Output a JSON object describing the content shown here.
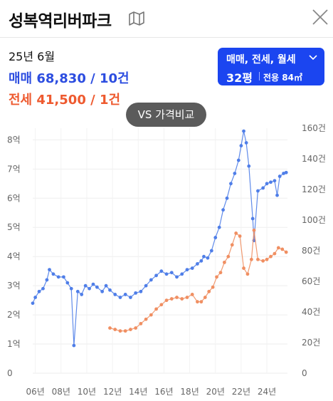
{
  "header": {
    "title": "성복역리버파크",
    "map_icon": "map-icon",
    "close_icon": "close-icon"
  },
  "summary": {
    "month": "25년 6월",
    "sale": "매매 68,830 / 10건",
    "jeonse": "전세 41,500 / 1건"
  },
  "selector": {
    "types": "매매, 전세, 월세",
    "size": "32평",
    "area": "전용 84㎡"
  },
  "compare_button": "VS 가격비교",
  "colors": {
    "sale": "#2c4de0",
    "sale_line": "#4f7ee8",
    "jeonse": "#ee5a2f",
    "jeonse_line": "#f08f62",
    "accent": "#1b45f0"
  },
  "chart_data": {
    "type": "line",
    "x_tick_labels": [
      "06년",
      "08년",
      "10년",
      "12년",
      "14년",
      "16년",
      "18년",
      "20년",
      "22년",
      "24년"
    ],
    "y_left_labels": [
      "0",
      "1억",
      "2억",
      "3억",
      "4억",
      "5억",
      "6억",
      "7억",
      "8억"
    ],
    "y_right_labels": [
      "0",
      "20건",
      "40건",
      "60건",
      "80건",
      "100건",
      "120건",
      "140건",
      "160건"
    ],
    "ylim_left": [
      0,
      8.4
    ],
    "ylim_right": [
      0,
      160
    ],
    "series": [
      {
        "name": "매매",
        "color": "#4f7ee8",
        "points": [
          [
            2005.8,
            2.4
          ],
          [
            2006.0,
            2.6
          ],
          [
            2006.3,
            2.8
          ],
          [
            2006.6,
            2.9
          ],
          [
            2006.9,
            3.2
          ],
          [
            2007.1,
            3.55
          ],
          [
            2007.4,
            3.4
          ],
          [
            2007.8,
            3.3
          ],
          [
            2008.2,
            3.3
          ],
          [
            2008.5,
            3.1
          ],
          [
            2008.8,
            2.9
          ],
          [
            2009.0,
            0.95
          ],
          [
            2009.3,
            2.8
          ],
          [
            2009.6,
            2.7
          ],
          [
            2009.9,
            3.0
          ],
          [
            2010.2,
            2.9
          ],
          [
            2010.5,
            3.05
          ],
          [
            2010.8,
            2.95
          ],
          [
            2011.2,
            2.8
          ],
          [
            2011.5,
            3.0
          ],
          [
            2011.8,
            2.85
          ],
          [
            2012.2,
            2.7
          ],
          [
            2012.6,
            2.6
          ],
          [
            2013.0,
            2.7
          ],
          [
            2013.4,
            2.6
          ],
          [
            2013.8,
            2.75
          ],
          [
            2014.2,
            2.8
          ],
          [
            2014.6,
            3.0
          ],
          [
            2015.0,
            3.2
          ],
          [
            2015.4,
            3.35
          ],
          [
            2015.8,
            3.5
          ],
          [
            2016.2,
            3.4
          ],
          [
            2016.6,
            3.45
          ],
          [
            2017.0,
            3.3
          ],
          [
            2017.4,
            3.4
          ],
          [
            2017.8,
            3.55
          ],
          [
            2018.2,
            3.6
          ],
          [
            2018.6,
            3.75
          ],
          [
            2018.9,
            3.85
          ],
          [
            2019.1,
            4.0
          ],
          [
            2019.4,
            3.95
          ],
          [
            2019.7,
            4.2
          ],
          [
            2020.0,
            4.65
          ],
          [
            2020.3,
            5.0
          ],
          [
            2020.6,
            5.6
          ],
          [
            2020.9,
            6.0
          ],
          [
            2021.2,
            6.5
          ],
          [
            2021.5,
            6.85
          ],
          [
            2021.8,
            7.3
          ],
          [
            2022.0,
            7.8
          ],
          [
            2022.2,
            8.3
          ],
          [
            2022.4,
            7.9
          ],
          [
            2022.6,
            7.1
          ],
          [
            2022.9,
            5.3
          ],
          [
            2023.0,
            4.55
          ],
          [
            2023.3,
            6.25
          ],
          [
            2023.7,
            6.35
          ],
          [
            2024.0,
            6.5
          ],
          [
            2024.3,
            6.55
          ],
          [
            2024.6,
            6.6
          ],
          [
            2024.8,
            6.1
          ],
          [
            2025.0,
            6.75
          ],
          [
            2025.3,
            6.85
          ],
          [
            2025.5,
            6.88
          ]
        ]
      },
      {
        "name": "전세",
        "color": "#f08f62",
        "points": [
          [
            2011.8,
            1.55
          ],
          [
            2012.2,
            1.5
          ],
          [
            2012.6,
            1.45
          ],
          [
            2013.0,
            1.45
          ],
          [
            2013.4,
            1.5
          ],
          [
            2013.8,
            1.55
          ],
          [
            2014.2,
            1.7
          ],
          [
            2014.6,
            1.85
          ],
          [
            2015.0,
            2.0
          ],
          [
            2015.4,
            2.2
          ],
          [
            2015.8,
            2.35
          ],
          [
            2016.2,
            2.5
          ],
          [
            2016.6,
            2.55
          ],
          [
            2017.0,
            2.6
          ],
          [
            2017.4,
            2.55
          ],
          [
            2017.8,
            2.6
          ],
          [
            2018.2,
            2.7
          ],
          [
            2018.6,
            2.45
          ],
          [
            2018.9,
            2.45
          ],
          [
            2019.2,
            2.6
          ],
          [
            2019.5,
            2.8
          ],
          [
            2019.8,
            2.95
          ],
          [
            2020.1,
            3.3
          ],
          [
            2020.4,
            3.45
          ],
          [
            2020.7,
            3.8
          ],
          [
            2021.0,
            4.0
          ],
          [
            2021.3,
            4.4
          ],
          [
            2021.6,
            4.8
          ],
          [
            2021.9,
            4.7
          ],
          [
            2022.2,
            3.6
          ],
          [
            2022.5,
            3.4
          ],
          [
            2022.8,
            3.9
          ],
          [
            2023.0,
            4.9
          ],
          [
            2023.3,
            3.9
          ],
          [
            2023.7,
            3.85
          ],
          [
            2024.0,
            3.9
          ],
          [
            2024.3,
            4.0
          ],
          [
            2024.6,
            4.1
          ],
          [
            2024.9,
            4.3
          ],
          [
            2025.2,
            4.25
          ],
          [
            2025.5,
            4.15
          ]
        ]
      }
    ]
  }
}
